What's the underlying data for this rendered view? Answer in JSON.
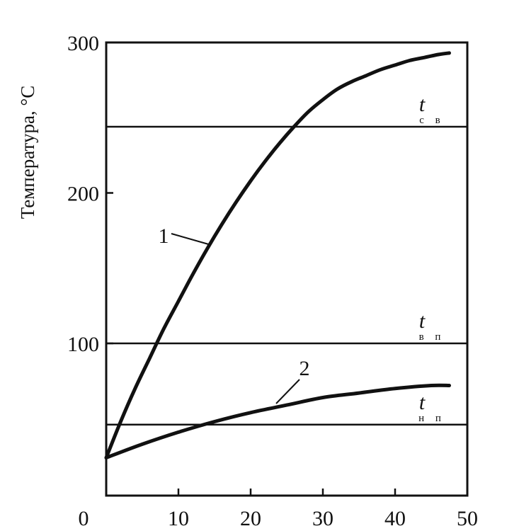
{
  "chart_data": {
    "type": "line",
    "title": "",
    "xlabel": "",
    "ylabel": "Температура, °С",
    "xlim": [
      0,
      50
    ],
    "ylim": [
      0,
      300
    ],
    "x_ticks": [
      "0",
      "10",
      "20",
      "30",
      "40",
      "50"
    ],
    "y_ticks": [
      "100",
      "200",
      "300"
    ],
    "grid": false,
    "series": [
      {
        "name": "1",
        "x": [
          0,
          2,
          4,
          6,
          8,
          10,
          12,
          14,
          16,
          18,
          20,
          22,
          24,
          26,
          28,
          30,
          32,
          34,
          36,
          38,
          40,
          42,
          44,
          46,
          47.5
        ],
        "y": [
          24,
          48,
          70,
          90,
          110,
          128,
          146,
          163,
          179,
          194,
          208,
          221,
          233,
          244,
          254,
          262,
          269,
          274,
          278,
          282,
          285,
          288,
          290,
          292,
          293
        ]
      },
      {
        "name": "2",
        "x": [
          0,
          5,
          10,
          15,
          20,
          25,
          30,
          35,
          40,
          45,
          47.5
        ],
        "y": [
          24,
          33,
          41,
          48,
          54,
          59,
          64,
          67,
          70,
          72,
          72
        ]
      }
    ],
    "reference_lines": [
      {
        "name": "t св",
        "t": "t",
        "sub": "с в",
        "y": 244
      },
      {
        "name": "t вп",
        "t": "t",
        "sub": "в п",
        "y": 100
      },
      {
        "name": "t нп",
        "t": "t",
        "sub": "н п",
        "y": 46
      }
    ]
  }
}
